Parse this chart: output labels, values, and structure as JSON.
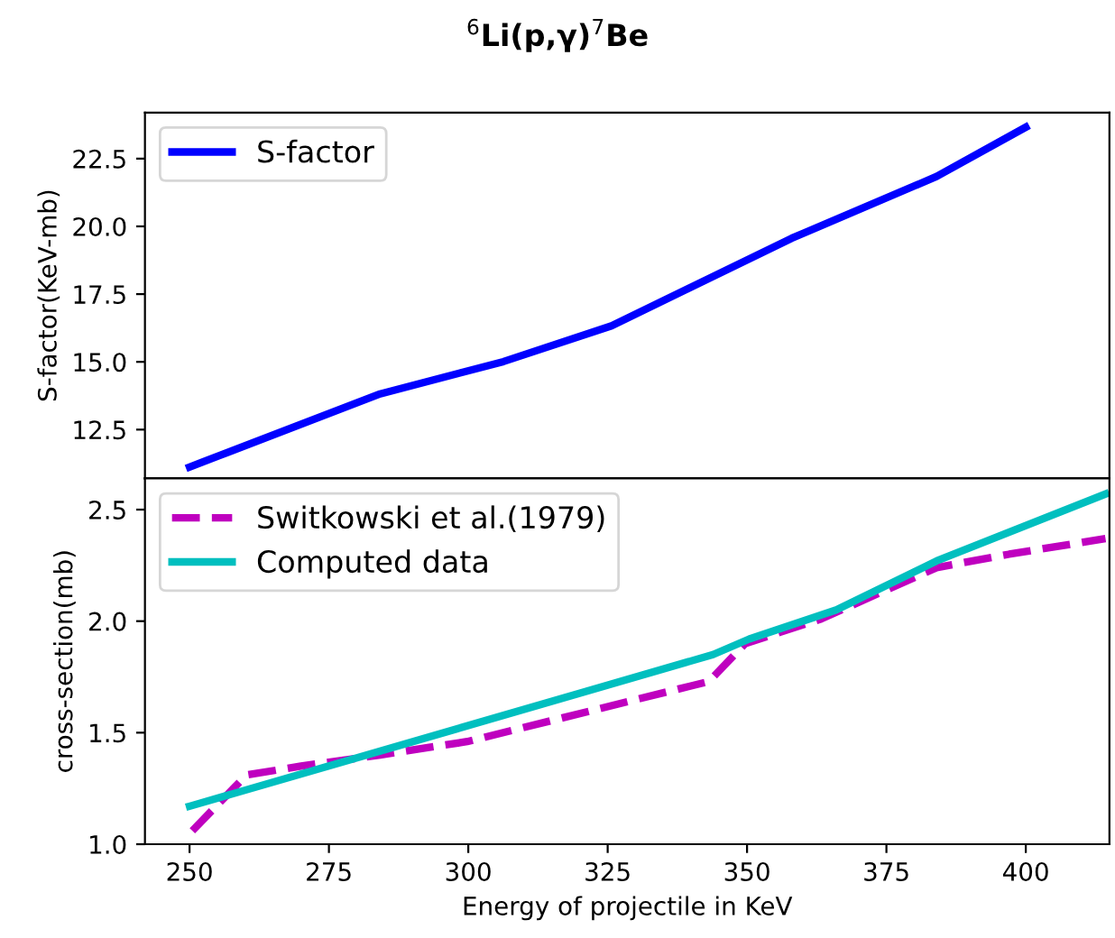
{
  "chart_data": [
    {
      "type": "line",
      "title": "$^{6}$Li(p,γ)$^{7}$Be",
      "ylabel": "S-factor(KeV-mb)",
      "xlim": [
        242,
        415
      ],
      "ylim": [
        10.7,
        24.2
      ],
      "yticks": [
        12.5,
        {
          "value": 15,
          "label": "15.0"
        },
        17.5,
        {
          "value": 20,
          "label": "20.0"
        },
        22.5
      ],
      "tick_labels": "y",
      "legend": "top left",
      "grid": false,
      "series": [
        {
          "name": "S-factor",
          "color": "#0000ff",
          "line_style": "solid",
          "x": [
            250,
            284.2,
            306.3,
            325.7,
            358,
            384,
            400
          ],
          "values": [
            11.12,
            13.82,
            15.01,
            16.33,
            19.56,
            21.84,
            23.66
          ]
        }
      ]
    },
    {
      "type": "line",
      "xlabel": "Energy of projectile in KeV",
      "ylabel": "cross-section(mb)",
      "xlim": [
        242,
        415
      ],
      "xticks": [
        250,
        275,
        300,
        325,
        350,
        375,
        400
      ],
      "ylim": [
        1.0,
        2.64
      ],
      "yticks": [
        {
          "value": 1,
          "label": "1.0"
        },
        1.5,
        {
          "value": 2,
          "label": "2.0"
        },
        2.5
      ],
      "legend": "top left",
      "grid": false,
      "series": [
        {
          "name": "Switkowski et al.(1979)",
          "color": "#bf00bf",
          "line_style": "dashed",
          "x": [
            250.5,
            260.2,
            270,
            284.2,
            299.8,
            343.2,
            349.7,
            363.3,
            384,
            397,
            414.3
          ],
          "values": [
            1.06,
            1.31,
            1.35,
            1.4,
            1.46,
            1.73,
            1.9,
            2.01,
            2.24,
            2.3,
            2.37
          ]
        },
        {
          "name": "Computed data",
          "color": "#00bfbf",
          "line_style": "solid",
          "x": [
            250,
            343.9,
            350.4,
            366,
            384,
            414.3
          ],
          "values": [
            1.17,
            1.85,
            1.92,
            2.05,
            2.27,
            2.57
          ]
        }
      ]
    }
  ]
}
